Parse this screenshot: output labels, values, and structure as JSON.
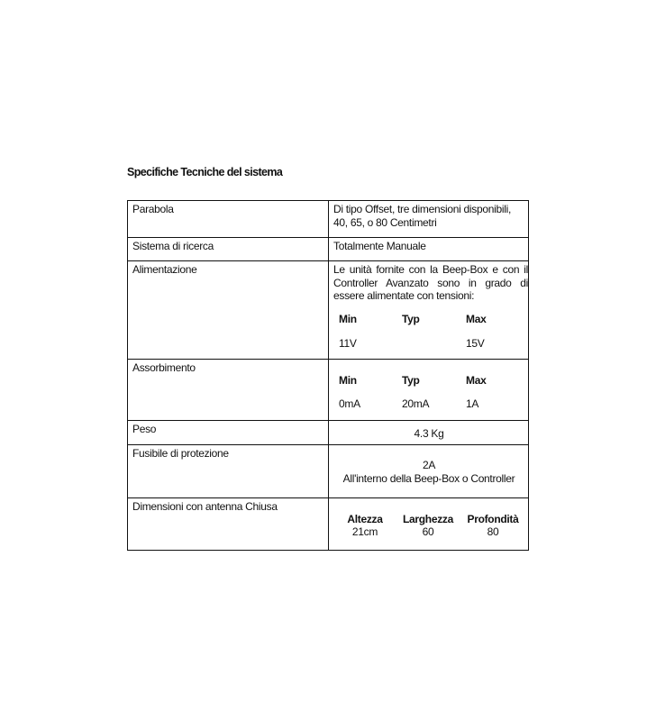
{
  "title": "Specifiche Tecniche del sistema",
  "rows": [
    {
      "label": "Parabola",
      "value": "Di tipo Offset, tre dimensioni disponibili, 40, 65, o 80 Centimetri"
    },
    {
      "label": "Sistema di ricerca",
      "value": "Totalmente Manuale"
    },
    {
      "label": "Alimentazione",
      "value": "Le unità fornite con la Beep-Box e con il Controller Avanzato sono in grado di essere alimentate con tensioni:",
      "headers": [
        "Min",
        "Typ",
        "Max"
      ],
      "values": [
        "11V",
        "",
        "15V"
      ]
    },
    {
      "label": "Assorbimento",
      "headers": [
        "Min",
        "Typ",
        "Max"
      ],
      "values": [
        "0mA",
        "20mA",
        "1A"
      ]
    },
    {
      "label": "Peso",
      "value": "4.3 Kg"
    },
    {
      "label": "Fusibile di protezione",
      "value": "2A",
      "value2": "All'interno della Beep-Box o Controller"
    },
    {
      "label": "Dimensioni con antenna Chiusa",
      "headers": [
        "Altezza",
        "Larghezza",
        "Profondità"
      ],
      "values": [
        "21cm",
        "60",
        "80"
      ]
    }
  ]
}
